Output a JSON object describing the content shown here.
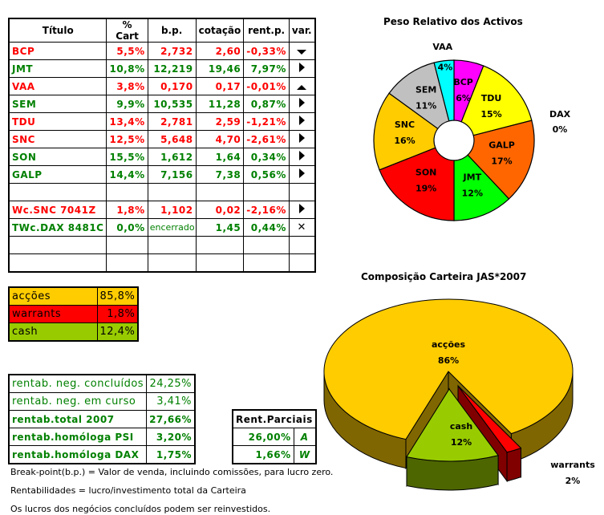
{
  "holdings": {
    "headers": [
      "Título",
      "% Cart",
      "b.p.",
      "cotação",
      "rent.p.",
      "var."
    ],
    "rows": [
      {
        "titulo": "BCP",
        "cart": "5,5%",
        "bp": "2,732",
        "cotacao": "2,60",
        "rent": "-0,33%",
        "var": "triangle-down-icon",
        "tone": "red"
      },
      {
        "titulo": "JMT",
        "cart": "10,8%",
        "bp": "12,219",
        "cotacao": "19,46",
        "rent": "7,97%",
        "var": "triangle-right-icon",
        "tone": "green"
      },
      {
        "titulo": "VAA",
        "cart": "3,8%",
        "bp": "0,170",
        "cotacao": "0,17",
        "rent": "-0,01%",
        "var": "triangle-up-icon",
        "tone": "red"
      },
      {
        "titulo": "SEM",
        "cart": "9,9%",
        "bp": "10,535",
        "cotacao": "11,28",
        "rent": "0,87%",
        "var": "triangle-right-icon",
        "tone": "green"
      },
      {
        "titulo": "TDU",
        "cart": "13,4%",
        "bp": "2,781",
        "cotacao": "2,59",
        "rent": "-1,21%",
        "var": "triangle-right-icon",
        "tone": "red"
      },
      {
        "titulo": "SNC",
        "cart": "12,5%",
        "bp": "5,648",
        "cotacao": "4,70",
        "rent": "-2,61%",
        "var": "triangle-right-icon",
        "tone": "red"
      },
      {
        "titulo": "SON",
        "cart": "15,5%",
        "bp": "1,612",
        "cotacao": "1,64",
        "rent": "0,34%",
        "var": "triangle-right-icon",
        "tone": "green"
      },
      {
        "titulo": "GALP",
        "cart": "14,4%",
        "bp": "7,156",
        "cotacao": "7,38",
        "rent": "0,56%",
        "var": "triangle-right-icon",
        "tone": "green"
      },
      {
        "titulo": "",
        "cart": "",
        "bp": "",
        "cotacao": "",
        "rent": "",
        "var": "",
        "tone": ""
      },
      {
        "titulo": "Wc.SNC 7041Z",
        "cart": "1,8%",
        "bp": "1,102",
        "cotacao": "0,02",
        "rent": "-2,16%",
        "var": "triangle-right-icon",
        "tone": "red"
      },
      {
        "titulo": "TWc.DAX 8481C",
        "cart": "0,0%",
        "bp": "encerrado",
        "cotacao": "1,45",
        "rent": "0,44%",
        "var": "x-icon",
        "tone": "green"
      },
      {
        "titulo": "",
        "cart": "",
        "bp": "",
        "cotacao": "",
        "rent": "",
        "var": "",
        "tone": ""
      },
      {
        "titulo": "",
        "cart": "",
        "bp": "",
        "cotacao": "",
        "rent": "",
        "var": "",
        "tone": ""
      }
    ]
  },
  "composition": [
    {
      "label": "acções",
      "value": "85,8%",
      "color": "#ffcc00"
    },
    {
      "label": "warrants",
      "value": "1,8%",
      "color": "#ff0000"
    },
    {
      "label": "cash",
      "value": "12,4%",
      "color": "#99cc00"
    }
  ],
  "returns": [
    {
      "label": "rentab. neg. concluídos",
      "value": "24,25%",
      "bold": false
    },
    {
      "label": "rentab. neg. em curso",
      "value": "3,41%",
      "bold": false
    },
    {
      "label": "rentab.total 2007",
      "value": "27,66%",
      "bold": true
    },
    {
      "label": "rentab.homóloga PSI",
      "value": "3,20%",
      "bold": true
    },
    {
      "label": "rentab.homóloga DAX",
      "value": "1,75%",
      "bold": true
    }
  ],
  "partials": {
    "header": "Rent.Parciais",
    "rows": [
      {
        "value": "26,00%",
        "code": "A"
      },
      {
        "value": "1,66%",
        "code": "W"
      }
    ]
  },
  "notes": [
    "Break-point(b.p.) = Valor de venda, incluindo comissões, para lucro zero.",
    "Rentabilidades = lucro/investimento total da Carteira",
    "Os lucros dos negócios concluídos podem ser reinvestidos."
  ],
  "chart_data": [
    {
      "type": "pie",
      "variant": "doughnut",
      "title": "Peso Relativo dos Activos",
      "slices": [
        {
          "label": "BCP",
          "value": 6,
          "color": "#ff00ff"
        },
        {
          "label": "TDU",
          "value": 15,
          "color": "#ffff00"
        },
        {
          "label": "DAX",
          "value": 0,
          "color": "#ffffff"
        },
        {
          "label": "GALP",
          "value": 17,
          "color": "#ff6600"
        },
        {
          "label": "JMT",
          "value": 12,
          "color": "#00ff00"
        },
        {
          "label": "SON",
          "value": 19,
          "color": "#ff0000"
        },
        {
          "label": "SNC",
          "value": 16,
          "color": "#ffcc00"
        },
        {
          "label": "SEM",
          "value": 11,
          "color": "#c0c0c0"
        },
        {
          "label": "VAA",
          "value": 4,
          "color": "#00ffff"
        }
      ]
    },
    {
      "type": "pie",
      "variant": "3d-exploded",
      "title": "Composição Carteira JAS*2007",
      "slices": [
        {
          "label": "acções",
          "value": 86,
          "color": "#ffcc00",
          "side_color": "#806600"
        },
        {
          "label": "warrants",
          "value": 2,
          "color": "#ff0000",
          "side_color": "#800000"
        },
        {
          "label": "cash",
          "value": 12,
          "color": "#99cc00",
          "side_color": "#4d6600"
        }
      ]
    }
  ]
}
